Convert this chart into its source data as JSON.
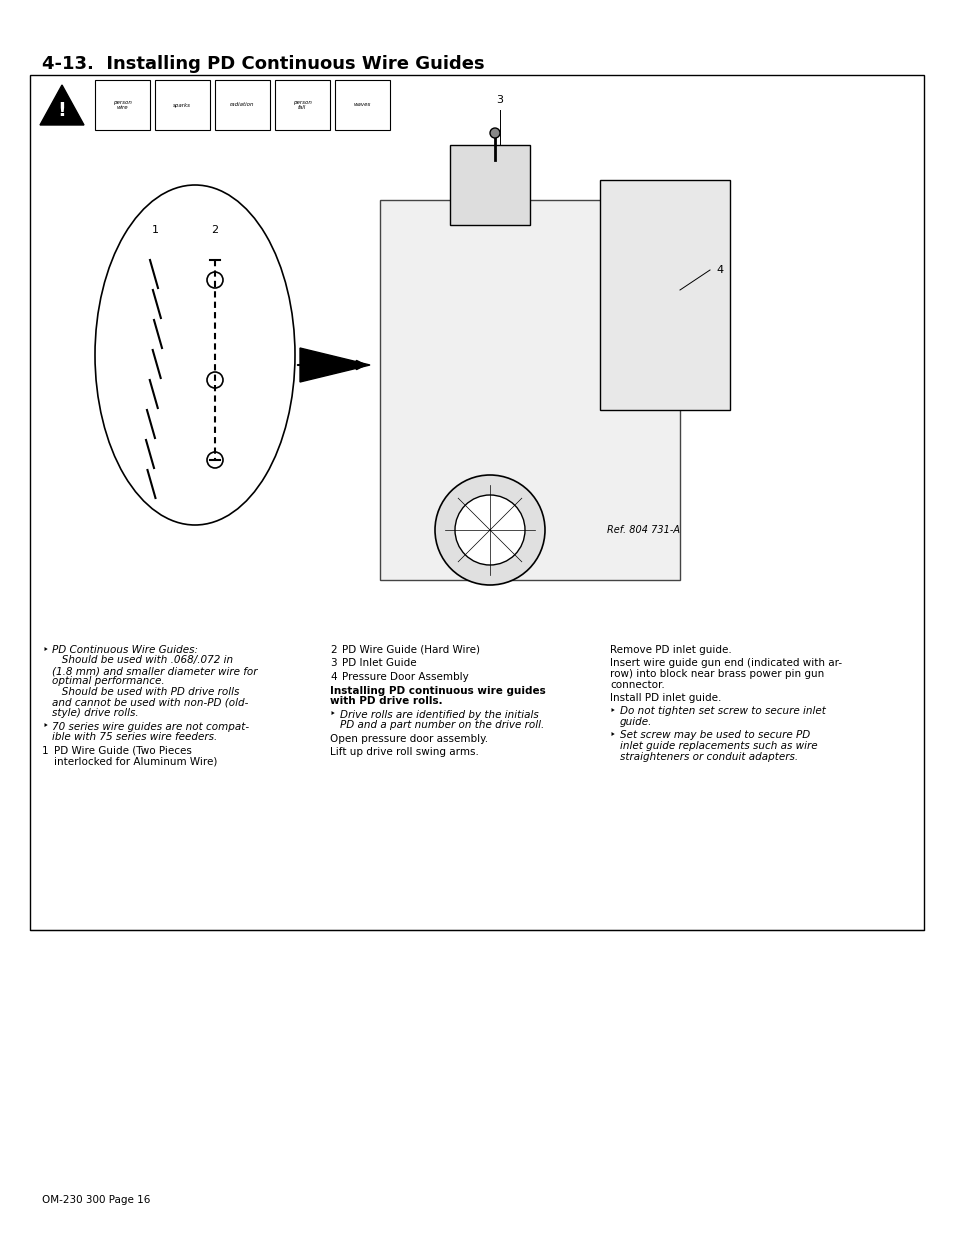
{
  "title": "4-13.  Installing PD Continuous Wire Guides",
  "page_label": "OM-230 300 Page 16",
  "ref_label": "Ref. 804 731-A",
  "background_color": "#ffffff",
  "border_color": "#000000",
  "title_color": "#000000",
  "title_fontsize": 13,
  "body_fontsize": 7.5,
  "col1_items": [
    {
      "type": "italic_note",
      "symbol": true,
      "lines": [
        "PD Continuous Wire Guides:",
        "   Should be used with .068/.072 in",
        "(1.8 mm) and smaller diameter wire for",
        "optimal performance.",
        "   Should be used with PD drive rolls",
        "and cannot be used with non-PD (old-",
        "style) drive rolls."
      ]
    },
    {
      "type": "italic_note",
      "symbol": true,
      "lines": [
        "70 series wire guides are not compat-",
        "ible with 75 series wire feeders."
      ]
    },
    {
      "type": "numbered",
      "number": "1",
      "lines": [
        "PD Wire Guide (Two Pieces",
        "interlocked for Aluminum Wire)"
      ]
    }
  ],
  "col2_items": [
    {
      "type": "numbered",
      "number": "2",
      "lines": [
        "PD Wire Guide (Hard Wire)"
      ]
    },
    {
      "type": "numbered",
      "number": "3",
      "lines": [
        "PD Inlet Guide"
      ]
    },
    {
      "type": "numbered",
      "number": "4",
      "lines": [
        "Pressure Door Assembly"
      ]
    },
    {
      "type": "bold_heading",
      "lines": [
        "Installing PD continuous wire guides",
        "with PD drive rolls."
      ]
    },
    {
      "type": "italic_note",
      "symbol": true,
      "lines": [
        "Drive rolls are identified by the initials",
        "PD and a part number on the drive roll."
      ]
    },
    {
      "type": "plain",
      "lines": [
        "Open pressure door assembly."
      ]
    },
    {
      "type": "plain",
      "lines": [
        "Lift up drive roll swing arms."
      ]
    }
  ],
  "col3_items": [
    {
      "type": "plain",
      "lines": [
        "Remove PD inlet guide."
      ]
    },
    {
      "type": "plain",
      "lines": [
        "Insert wire guide gun end (indicated with ar-",
        "row) into block near brass power pin gun",
        "connector."
      ]
    },
    {
      "type": "plain",
      "lines": [
        "Install PD inlet guide."
      ]
    },
    {
      "type": "italic_note",
      "symbol": true,
      "lines": [
        "Do not tighten set screw to secure inlet",
        "guide."
      ]
    },
    {
      "type": "italic_note",
      "symbol": true,
      "lines": [
        "Set screw may be used to secure PD",
        "inlet guide replacements such as wire",
        "straighteners or conduit adapters."
      ]
    }
  ]
}
